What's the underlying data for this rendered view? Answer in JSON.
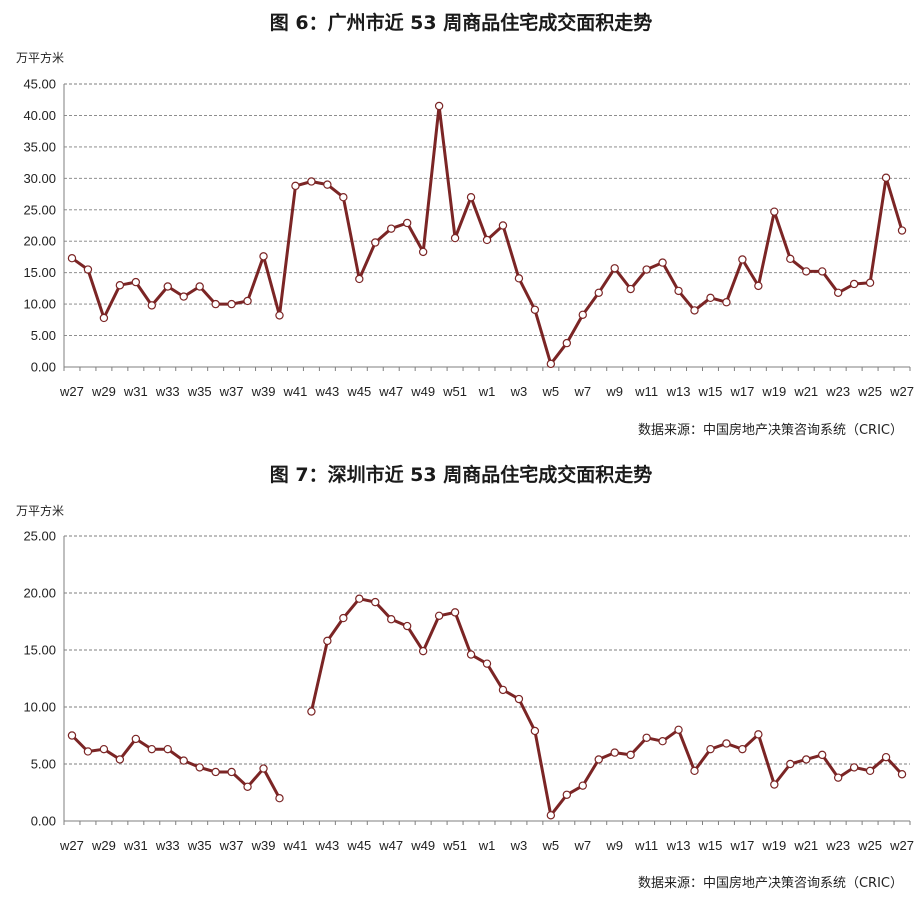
{
  "colors": {
    "line": "#7b2525",
    "marker_fill": "#ffffff",
    "grid": "#7f7f7f"
  },
  "chart_data": [
    {
      "type": "line",
      "title": "图 6：广州市近 53 周商品住宅成交面积走势",
      "ylabel": "万平方米",
      "source": "数据来源：中国房地产决策咨询系统（CRIC）",
      "ylim": [
        0,
        45
      ],
      "yticks": [
        "0.00",
        "5.00",
        "10.00",
        "15.00",
        "20.00",
        "25.00",
        "30.00",
        "35.00",
        "40.00",
        "45.00"
      ],
      "grid": true,
      "x": [
        "w27",
        "w28",
        "w29",
        "w30",
        "w31",
        "w32",
        "w33",
        "w34",
        "w35",
        "w36",
        "w37",
        "w38",
        "w39",
        "w40",
        "w41",
        "w42",
        "w43",
        "w44",
        "w45",
        "w46",
        "w47",
        "w48",
        "w49",
        "w50",
        "w51",
        "w52",
        "w1",
        "w2",
        "w3",
        "w4",
        "w5",
        "w6",
        "w7",
        "w8",
        "w9",
        "w10",
        "w11",
        "w12",
        "w13",
        "w14",
        "w15",
        "w16",
        "w17",
        "w18",
        "w19",
        "w20",
        "w21",
        "w22",
        "w23",
        "w24",
        "w25",
        "w26",
        "w27"
      ],
      "x_tick_labels": [
        "w27",
        "w29",
        "w31",
        "w33",
        "w35",
        "w37",
        "w39",
        "w41",
        "w43",
        "w45",
        "w47",
        "w49",
        "w51",
        "w1",
        "w3",
        "w5",
        "w7",
        "w9",
        "w11",
        "w13",
        "w15",
        "w17",
        "w19",
        "w21",
        "w23",
        "w25",
        "w27"
      ],
      "series": [
        {
          "values": [
            17.3,
            15.5,
            7.8,
            13.0,
            13.5,
            9.8,
            12.8,
            11.2,
            12.8,
            10.0,
            10.0,
            10.5,
            17.6,
            8.2,
            28.8,
            29.5,
            29.0,
            27.0,
            14.0,
            19.8,
            22.0,
            22.9,
            18.3,
            41.5,
            20.5,
            27.0,
            20.2,
            22.5,
            14.1,
            9.1,
            0.5,
            3.8,
            8.3,
            11.8,
            15.7,
            12.4,
            15.5,
            16.6,
            12.1,
            9.0,
            11.0,
            10.3,
            17.1,
            12.9,
            24.7,
            17.2,
            15.2,
            15.2,
            11.8,
            13.2,
            13.4,
            30.1,
            21.7
          ]
        }
      ]
    },
    {
      "type": "line",
      "title": "图 7：深圳市近 53 周商品住宅成交面积走势",
      "ylabel": "万平方米",
      "source": "数据来源：中国房地产决策咨询系统（CRIC）",
      "ylim": [
        0,
        25
      ],
      "yticks": [
        "0.00",
        "5.00",
        "10.00",
        "15.00",
        "20.00",
        "25.00"
      ],
      "grid": true,
      "x": [
        "w27",
        "w28",
        "w29",
        "w30",
        "w31",
        "w32",
        "w33",
        "w34",
        "w35",
        "w36",
        "w37",
        "w38",
        "w39",
        "w40",
        "w41",
        "w42",
        "w43",
        "w44",
        "w45",
        "w46",
        "w47",
        "w48",
        "w49",
        "w50",
        "w51",
        "w52",
        "w1",
        "w2",
        "w3",
        "w4",
        "w5",
        "w6",
        "w7",
        "w8",
        "w9",
        "w10",
        "w11",
        "w12",
        "w13",
        "w14",
        "w15",
        "w16",
        "w17",
        "w18",
        "w19",
        "w20",
        "w21",
        "w22",
        "w23",
        "w24",
        "w25",
        "w26",
        "w27"
      ],
      "x_tick_labels": [
        "w27",
        "w29",
        "w31",
        "w33",
        "w35",
        "w37",
        "w39",
        "w41",
        "w43",
        "w45",
        "w47",
        "w49",
        "w51",
        "w1",
        "w3",
        "w5",
        "w7",
        "w9",
        "w11",
        "w13",
        "w15",
        "w17",
        "w19",
        "w21",
        "w23",
        "w25",
        "w27"
      ],
      "series": [
        {
          "values": [
            7.5,
            6.1,
            6.3,
            5.4,
            7.2,
            6.3,
            6.3,
            5.3,
            4.7,
            4.3,
            4.3,
            3.0,
            4.6,
            2.0,
            null,
            9.6,
            15.8,
            17.8,
            19.5,
            19.2,
            17.7,
            17.1,
            14.9,
            18.0,
            18.3,
            14.6,
            13.8,
            11.5,
            10.7,
            7.9,
            0.5,
            2.3,
            3.1,
            5.4,
            6.0,
            5.8,
            7.3,
            7.0,
            8.0,
            4.4,
            6.3,
            6.8,
            6.3,
            7.6,
            3.2,
            5.0,
            5.4,
            5.8,
            3.8,
            4.7,
            4.4,
            5.6,
            4.1
          ]
        }
      ]
    }
  ]
}
